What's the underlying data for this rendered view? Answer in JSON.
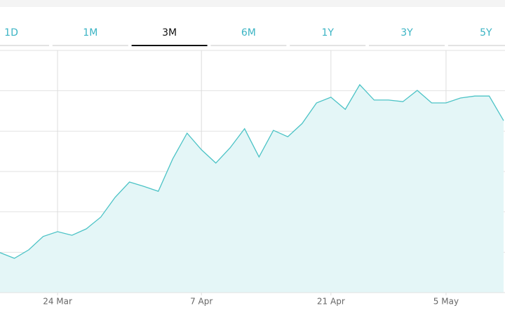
{
  "tabs": {
    "items": [
      "1D",
      "1M",
      "3M",
      "6M",
      "1Y",
      "3Y",
      "5Y"
    ],
    "selected_index": 2,
    "color": "#3bb4c4",
    "selected_color": "#111111"
  },
  "chart_data": {
    "type": "area",
    "categories": [
      null,
      null,
      null,
      null,
      "24 Mar",
      null,
      null,
      null,
      null,
      null,
      null,
      null,
      null,
      null,
      "7 Apr",
      null,
      null,
      null,
      null,
      null,
      null,
      null,
      null,
      "21 Apr",
      null,
      null,
      null,
      null,
      null,
      null,
      null,
      "5 May",
      null,
      null,
      null,
      null
    ],
    "values": [
      0.99,
      0.85,
      1.06,
      1.39,
      1.51,
      1.42,
      1.58,
      1.87,
      2.36,
      2.74,
      2.63,
      2.51,
      3.31,
      3.95,
      3.54,
      3.21,
      3.59,
      4.06,
      3.36,
      4.02,
      3.86,
      4.19,
      4.7,
      4.84,
      4.54,
      5.15,
      4.77,
      4.77,
      4.73,
      5.01,
      4.7,
      4.7,
      4.82,
      4.87,
      4.87,
      4.26
    ],
    "color": "#4cc3c6",
    "fill": "#e4f6f7",
    "ylim": [
      0,
      6
    ],
    "yticks": [
      0,
      1,
      2,
      3,
      4,
      5,
      6
    ],
    "grid": true
  }
}
